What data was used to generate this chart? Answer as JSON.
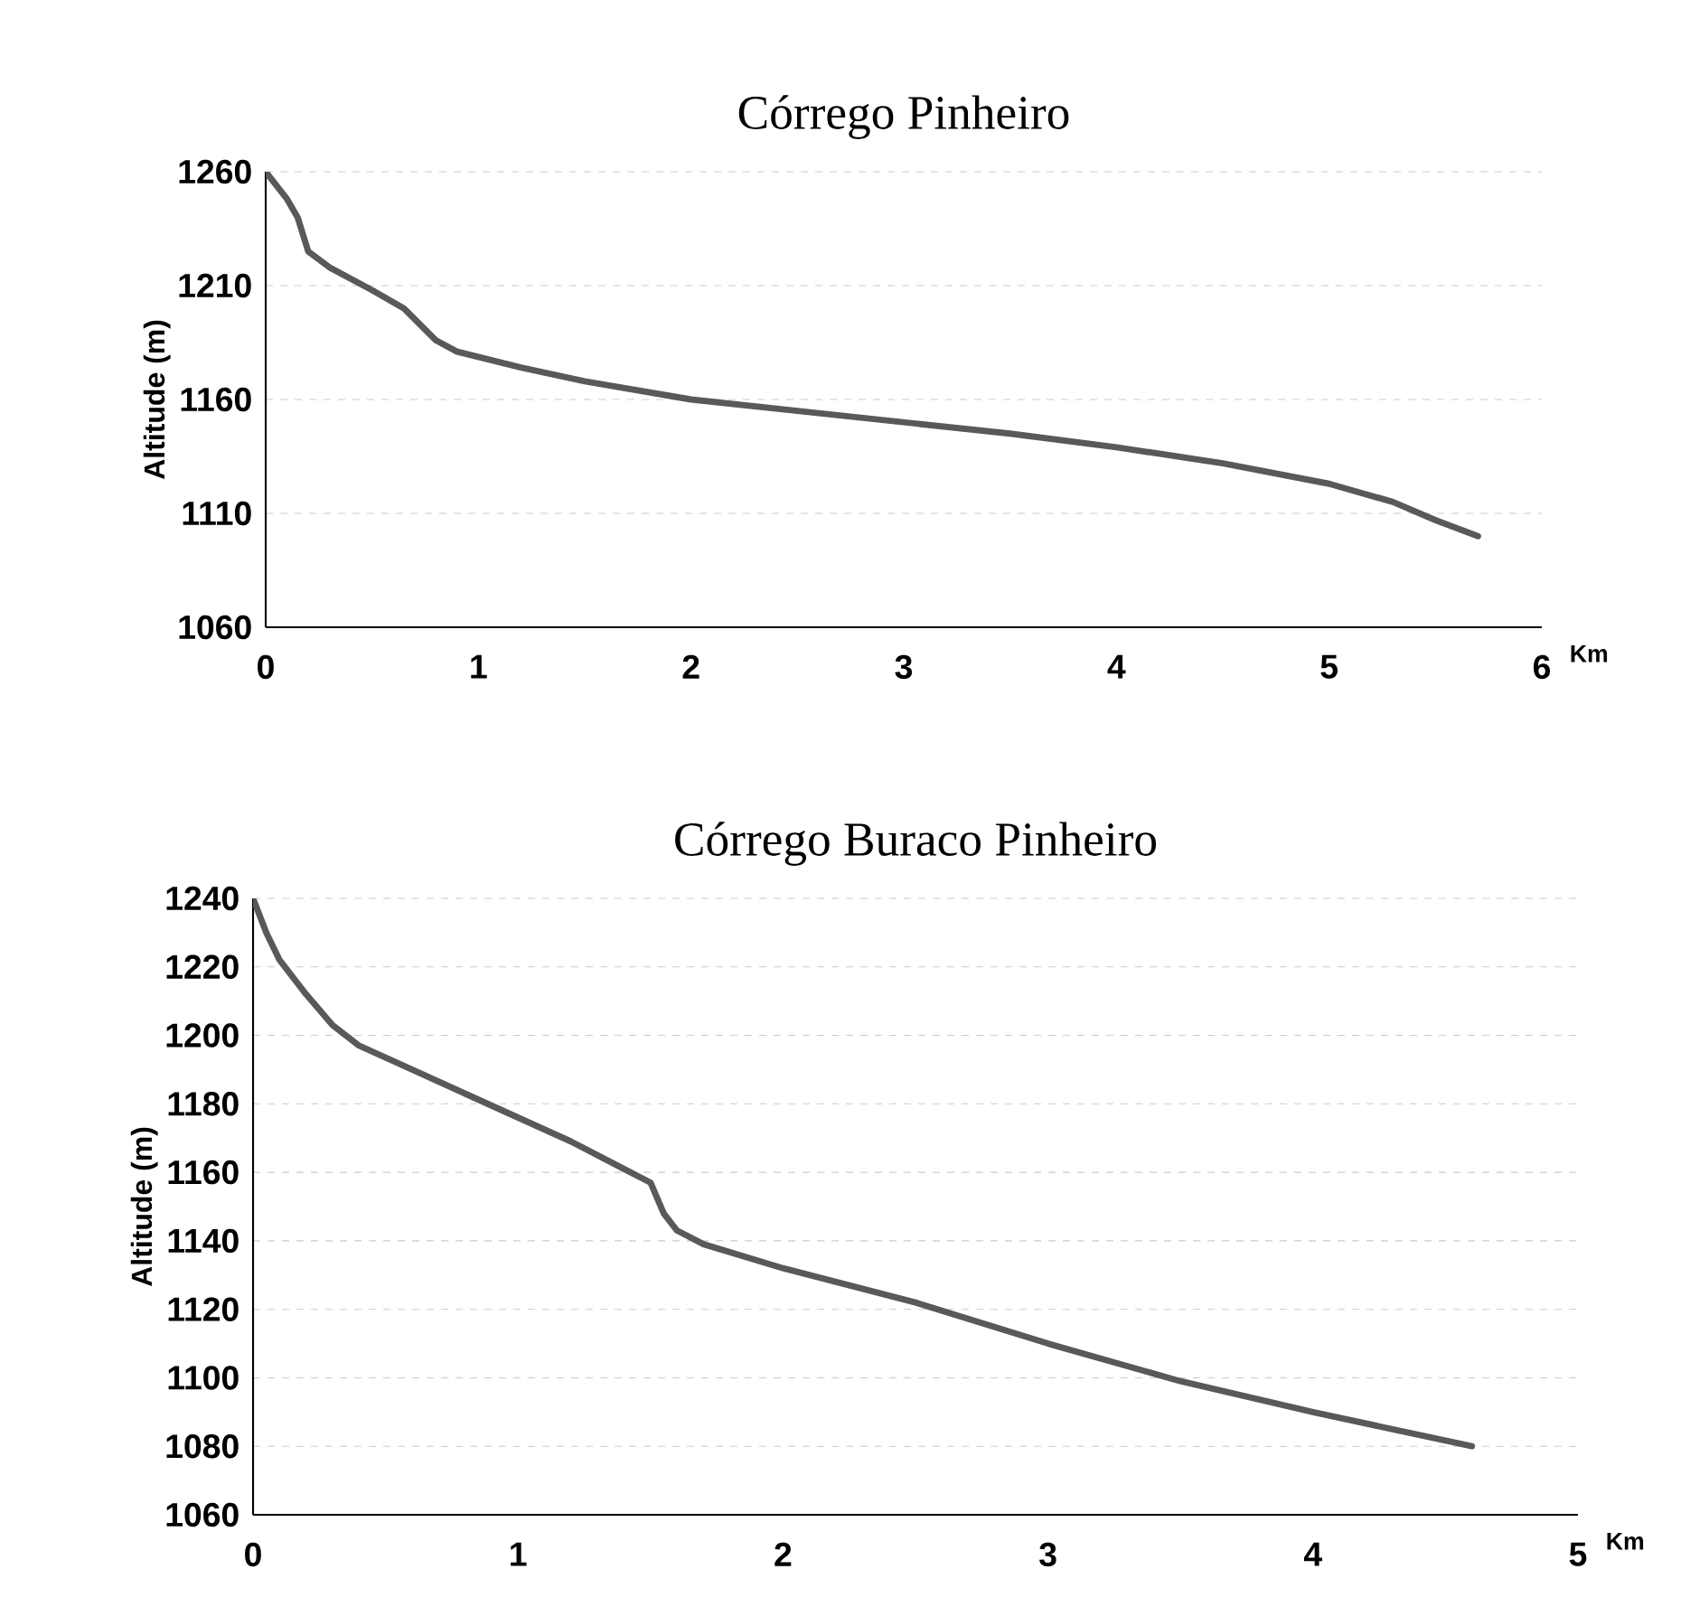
{
  "chart_data": [
    {
      "type": "line",
      "title": "Córrego Pinheiro",
      "xlabel": "Km",
      "ylabel": "Altitude (m)",
      "x": [
        0,
        0.1,
        0.15,
        0.2,
        0.3,
        0.5,
        0.65,
        0.8,
        0.9,
        1.2,
        1.5,
        2,
        2.5,
        3,
        3.5,
        4,
        4.5,
        5,
        5.3,
        5.5,
        5.7
      ],
      "series": [
        {
          "color": "#595959",
          "values": [
            1260,
            1248,
            1240,
            1225,
            1218,
            1208,
            1200,
            1186,
            1181,
            1174,
            1168,
            1160,
            1155,
            1150,
            1145,
            1139,
            1132,
            1123,
            1115,
            1107,
            1100
          ]
        }
      ],
      "xlim": [
        0,
        6
      ],
      "xticks": [
        0,
        1,
        2,
        3,
        4,
        5,
        6
      ],
      "ylim": [
        1060,
        1260
      ],
      "yticks": [
        1060,
        1110,
        1160,
        1210,
        1260
      ],
      "grid": "y",
      "marker": "none",
      "line_style": "solid"
    },
    {
      "type": "line",
      "title": "Córrego Buraco Pinheiro",
      "xlabel": "Km",
      "ylabel": "Altitude (m)",
      "x": [
        0,
        0.05,
        0.1,
        0.2,
        0.3,
        0.4,
        0.6,
        0.8,
        1,
        1.2,
        1.4,
        1.5,
        1.55,
        1.6,
        1.7,
        2,
        2.5,
        3,
        3.5,
        4,
        4.6
      ],
      "series": [
        {
          "color": "#595959",
          "values": [
            1240,
            1230,
            1222,
            1212,
            1203,
            1197,
            1190,
            1183,
            1176,
            1169,
            1161,
            1157,
            1148,
            1143,
            1139,
            1132,
            1122,
            1110,
            1099,
            1090,
            1080
          ]
        }
      ],
      "xlim": [
        0,
        5
      ],
      "xticks": [
        0,
        1,
        2,
        3,
        4,
        5
      ],
      "ylim": [
        1060,
        1240
      ],
      "yticks": [
        1060,
        1080,
        1100,
        1120,
        1140,
        1160,
        1180,
        1200,
        1220,
        1240
      ],
      "grid": "y",
      "marker": "none",
      "line_style": "solid"
    }
  ]
}
